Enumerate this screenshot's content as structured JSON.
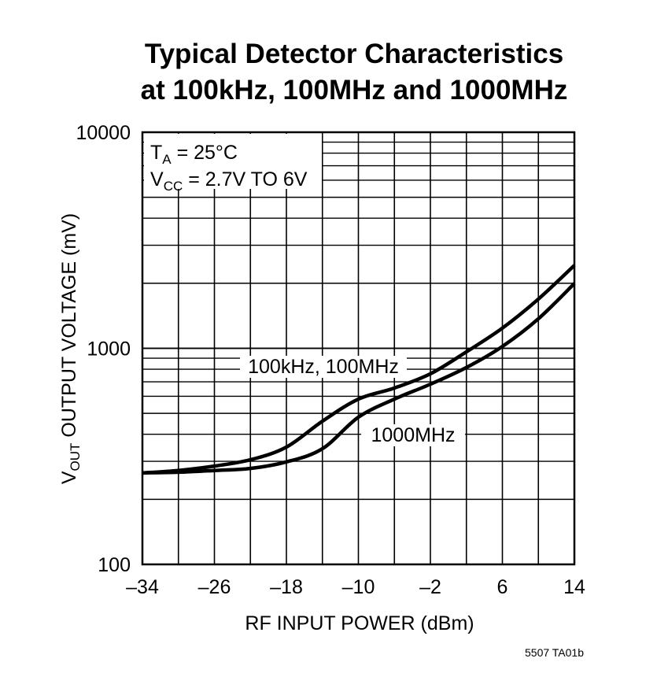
{
  "chart_data": {
    "type": "line",
    "title": [
      "Typical Detector Characteristics",
      "at 100kHz, 100MHz and 1000MHz"
    ],
    "xlabel": "RF INPUT POWER (dBm)",
    "ylabel": {
      "main": "V",
      "sub": "OUT",
      "rest": " OUTPUT VOLTAGE (mV)"
    },
    "xlim": [
      -34,
      14
    ],
    "ylim": [
      100,
      10000
    ],
    "yscale": "log",
    "grid": true,
    "xticks": [
      -34,
      -26,
      -18,
      -10,
      -2,
      6,
      14
    ],
    "xtick_labels": [
      "–34",
      "–26",
      "–18",
      "–10",
      "–2",
      "6",
      "14"
    ],
    "yticks": [
      100,
      1000,
      10000
    ],
    "ytick_labels": [
      "100",
      "1000",
      "10000"
    ],
    "conditions": [
      {
        "main": "T",
        "sub": "A",
        "rest": " = 25°C"
      },
      {
        "main": "V",
        "sub": "CC",
        "rest": " = 2.7V TO 6V"
      }
    ],
    "x": [
      -34,
      -30,
      -26,
      -22,
      -18,
      -14,
      -10,
      -6,
      -2,
      2,
      6,
      10,
      14
    ],
    "series": [
      {
        "name": "100kHz, 100MHz",
        "values": [
          265,
          272,
          285,
          305,
          349,
          460,
          582,
          655,
          762,
          963,
          1240,
          1690,
          2420
        ]
      },
      {
        "name": "1000MHz",
        "values": [
          265,
          267,
          272,
          278,
          298,
          343,
          480,
          582,
          682,
          815,
          1020,
          1370,
          1995
        ]
      }
    ],
    "line_color": "#000000"
  },
  "figure_id": "5507 TA01b"
}
